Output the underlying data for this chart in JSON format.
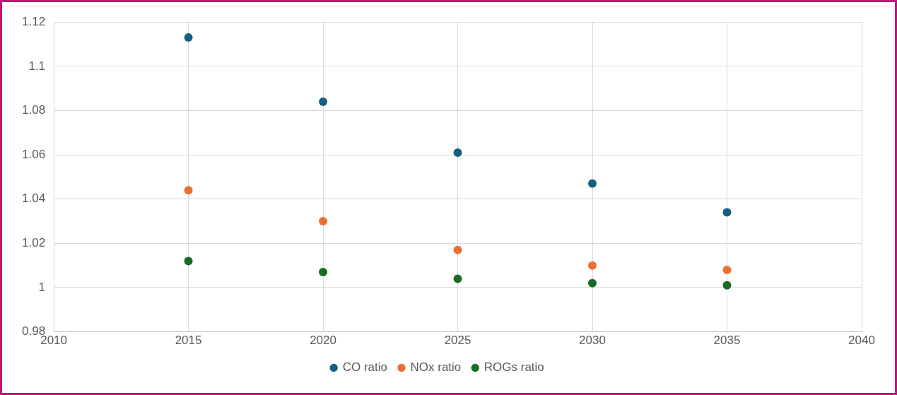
{
  "chart_data": {
    "type": "scatter",
    "xlim": [
      2010,
      2040
    ],
    "xticks": [
      2010,
      2015,
      2020,
      2025,
      2030,
      2035,
      2040
    ],
    "ylim": [
      0.98,
      1.12
    ],
    "yticks": [
      0.98,
      1,
      1.02,
      1.04,
      1.06,
      1.08,
      1.1,
      1.12
    ],
    "grid": true,
    "legend": "bottom",
    "marker": "circle",
    "x": [
      2015,
      2020,
      2025,
      2030,
      2035
    ],
    "series": [
      {
        "name": "CO ratio",
        "color": "#156082",
        "values": [
          1.113,
          1.084,
          1.061,
          1.047,
          1.034
        ]
      },
      {
        "name": "NOx ratio",
        "color": "#e97132",
        "values": [
          1.044,
          1.03,
          1.017,
          1.01,
          1.008
        ]
      },
      {
        "name": "ROGs ratio",
        "color": "#196b24",
        "values": [
          1.012,
          1.007,
          1.004,
          1.002,
          1.001
        ]
      }
    ]
  }
}
